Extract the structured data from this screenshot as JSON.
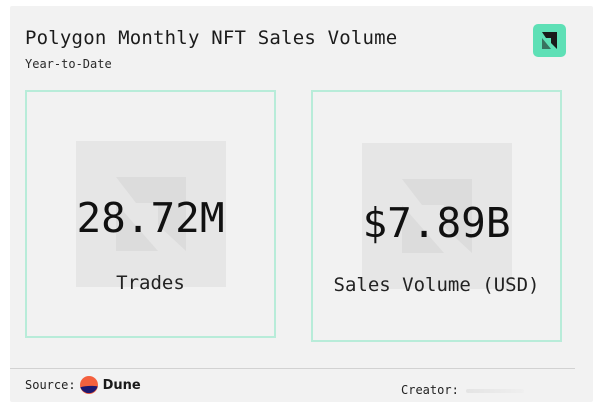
{
  "header": {
    "title": "Polygon Monthly NFT Sales Volume",
    "subtitle": "Year-to-Date"
  },
  "metrics": [
    {
      "value": "28.72M",
      "label": "Trades"
    },
    {
      "value": "$7.89B",
      "label": "Sales Volume (USD)"
    }
  ],
  "footer": {
    "source_label": "Source:",
    "source_name": "Dune",
    "creator_label": "Creator:"
  },
  "colors": {
    "accent": "#5ee0b6",
    "border": "#b8ecd9",
    "card_background": "#f2f2f2",
    "dune_orange": "#f4603e",
    "dune_navy": "#1e1870"
  },
  "icons": {
    "brand_logo": "arrow-logo-icon",
    "watermark": "watermark-logo-icon",
    "source_logo": "dune-logo-icon"
  }
}
